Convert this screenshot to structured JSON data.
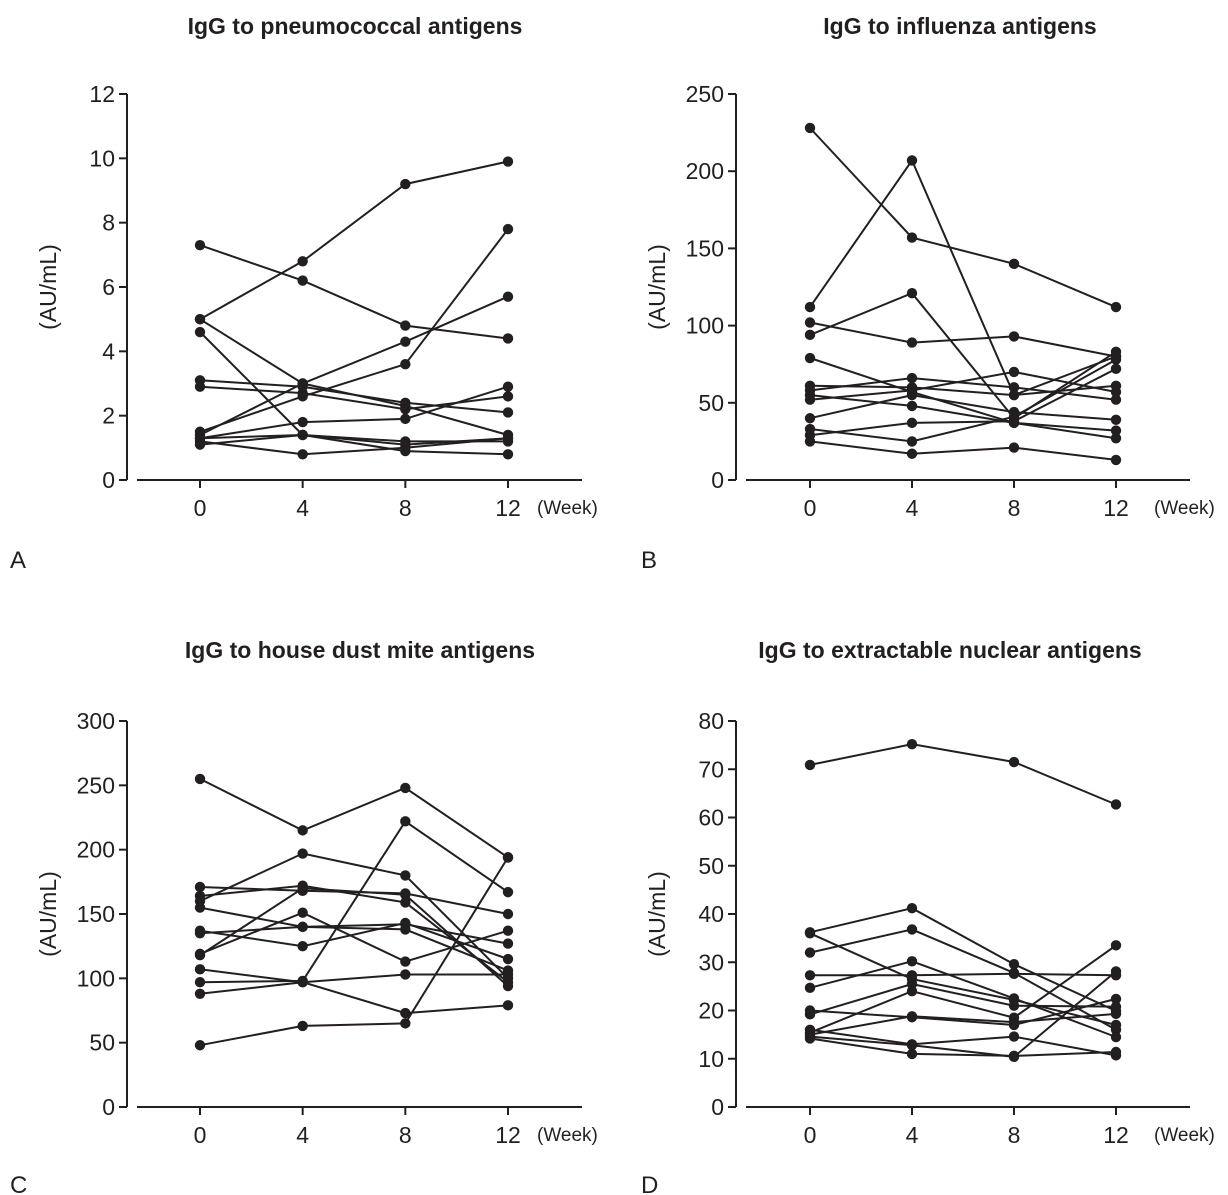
{
  "chart_data": [
    {
      "type": "line",
      "panel_letter": "A",
      "title": "IgG to pneumococcal antigens",
      "ylabel": "(AU/mL)",
      "xunit": "(Week)",
      "x": [
        0,
        4,
        8,
        12
      ],
      "xticks": [
        "0",
        "4",
        "8",
        "12"
      ],
      "ylim": [
        0,
        12
      ],
      "yticks": [
        "0",
        "2",
        "4",
        "6",
        "8",
        "10",
        "12"
      ],
      "grid": false,
      "legend": "none",
      "series": [
        {
          "values": [
            7.3,
            6.2,
            4.8,
            4.4
          ]
        },
        {
          "values": [
            5.0,
            6.8,
            9.2,
            9.9
          ]
        },
        {
          "values": [
            5.0,
            3.0,
            2.3,
            1.4
          ]
        },
        {
          "values": [
            4.6,
            1.4,
            1.1,
            1.3
          ]
        },
        {
          "values": [
            3.1,
            2.9,
            2.4,
            2.1
          ]
        },
        {
          "values": [
            2.9,
            2.7,
            2.2,
            2.6
          ]
        },
        {
          "values": [
            1.5,
            2.6,
            3.6,
            7.8
          ]
        },
        {
          "values": [
            1.4,
            3.0,
            4.3,
            5.7
          ]
        },
        {
          "values": [
            1.3,
            1.4,
            1.2,
            1.2
          ]
        },
        {
          "values": [
            1.3,
            1.8,
            1.9,
            2.9
          ]
        },
        {
          "values": [
            1.2,
            0.8,
            1.0,
            1.3
          ]
        },
        {
          "values": [
            1.1,
            1.4,
            0.9,
            0.8
          ]
        }
      ]
    },
    {
      "type": "line",
      "panel_letter": "B",
      "title": "IgG to influenza antigens",
      "ylabel": "(AU/mL)",
      "xunit": "(Week)",
      "x": [
        0,
        4,
        8,
        12
      ],
      "xticks": [
        "0",
        "4",
        "8",
        "12"
      ],
      "ylim": [
        0,
        250
      ],
      "yticks": [
        "0",
        "50",
        "100",
        "150",
        "200",
        "250"
      ],
      "grid": false,
      "legend": "none",
      "series": [
        {
          "values": [
            228,
            157,
            140,
            112
          ]
        },
        {
          "values": [
            112,
            207,
            55,
            80
          ]
        },
        {
          "values": [
            102,
            89,
            93,
            80
          ]
        },
        {
          "values": [
            94,
            121,
            40,
            83
          ]
        },
        {
          "values": [
            79,
            57,
            37,
            27
          ]
        },
        {
          "values": [
            61,
            60,
            55,
            61
          ]
        },
        {
          "values": [
            58,
            66,
            60,
            52
          ]
        },
        {
          "values": [
            55,
            48,
            37,
            32
          ]
        },
        {
          "values": [
            52,
            58,
            70,
            57
          ]
        },
        {
          "values": [
            40,
            55,
            44,
            39
          ]
        },
        {
          "values": [
            33,
            25,
            41,
            78
          ]
        },
        {
          "values": [
            29,
            37,
            38,
            72
          ]
        },
        {
          "values": [
            25,
            17,
            21,
            13
          ]
        }
      ]
    },
    {
      "type": "line",
      "panel_letter": "C",
      "title": "IgG to house dust mite antigens",
      "ylabel": "(AU/mL)",
      "xunit": "(Week)",
      "x": [
        0,
        4,
        8,
        12
      ],
      "xticks": [
        "0",
        "4",
        "8",
        "12"
      ],
      "ylim": [
        0,
        300
      ],
      "yticks": [
        "0",
        "50",
        "100",
        "150",
        "200",
        "250",
        "300"
      ],
      "grid": false,
      "legend": "none",
      "series": [
        {
          "values": [
            255,
            215,
            248,
            194
          ]
        },
        {
          "values": [
            171,
            168,
            166,
            150
          ]
        },
        {
          "values": [
            164,
            172,
            159,
            97
          ]
        },
        {
          "values": [
            160,
            197,
            180,
            100
          ]
        },
        {
          "values": [
            155,
            140,
            142,
            127
          ]
        },
        {
          "values": [
            137,
            125,
            143,
            115
          ]
        },
        {
          "values": [
            135,
            140,
            138,
            106
          ]
        },
        {
          "values": [
            119,
            151,
            113,
            137
          ]
        },
        {
          "values": [
            118,
            170,
            165,
            94
          ]
        },
        {
          "values": [
            107,
            97,
            103,
            103
          ]
        },
        {
          "values": [
            97,
            98,
            222,
            167
          ]
        },
        {
          "values": [
            88,
            97,
            73,
            79
          ]
        },
        {
          "values": [
            48,
            63,
            65,
            194
          ]
        }
      ]
    },
    {
      "type": "line",
      "panel_letter": "D",
      "title": "IgG to extractable nuclear antigens",
      "ylabel": "(AU/mL)",
      "xunit": "(Week)",
      "x": [
        0,
        4,
        8,
        12
      ],
      "xticks": [
        "0",
        "4",
        "8",
        "12"
      ],
      "ylim": [
        0,
        80
      ],
      "yticks": [
        "0",
        "10",
        "20",
        "30",
        "40",
        "50",
        "60",
        "70",
        "80"
      ],
      "grid": false,
      "legend": "none",
      "series": [
        {
          "values": [
            70.9,
            75.2,
            71.5,
            62.7
          ]
        },
        {
          "values": [
            36.2,
            41.2,
            29.6,
            19.9
          ]
        },
        {
          "values": [
            36.0,
            26.5,
            22.2,
            17.0
          ]
        },
        {
          "values": [
            32.0,
            36.8,
            27.8,
            16.0
          ]
        },
        {
          "values": [
            27.3,
            27.3,
            27.6,
            27.3
          ]
        },
        {
          "values": [
            24.7,
            30.2,
            22.5,
            14.5
          ]
        },
        {
          "values": [
            20.0,
            18.6,
            17.0,
            22.4
          ]
        },
        {
          "values": [
            19.2,
            25.5,
            21.0,
            20.8
          ]
        },
        {
          "values": [
            16.0,
            13.0,
            14.6,
            10.7
          ]
        },
        {
          "values": [
            15.4,
            24.0,
            18.5,
            33.5
          ]
        },
        {
          "values": [
            15.0,
            18.8,
            17.6,
            19.3
          ]
        },
        {
          "values": [
            14.6,
            12.8,
            10.4,
            28.1
          ]
        },
        {
          "values": [
            14.2,
            11.0,
            10.6,
            11.4
          ]
        }
      ]
    }
  ]
}
